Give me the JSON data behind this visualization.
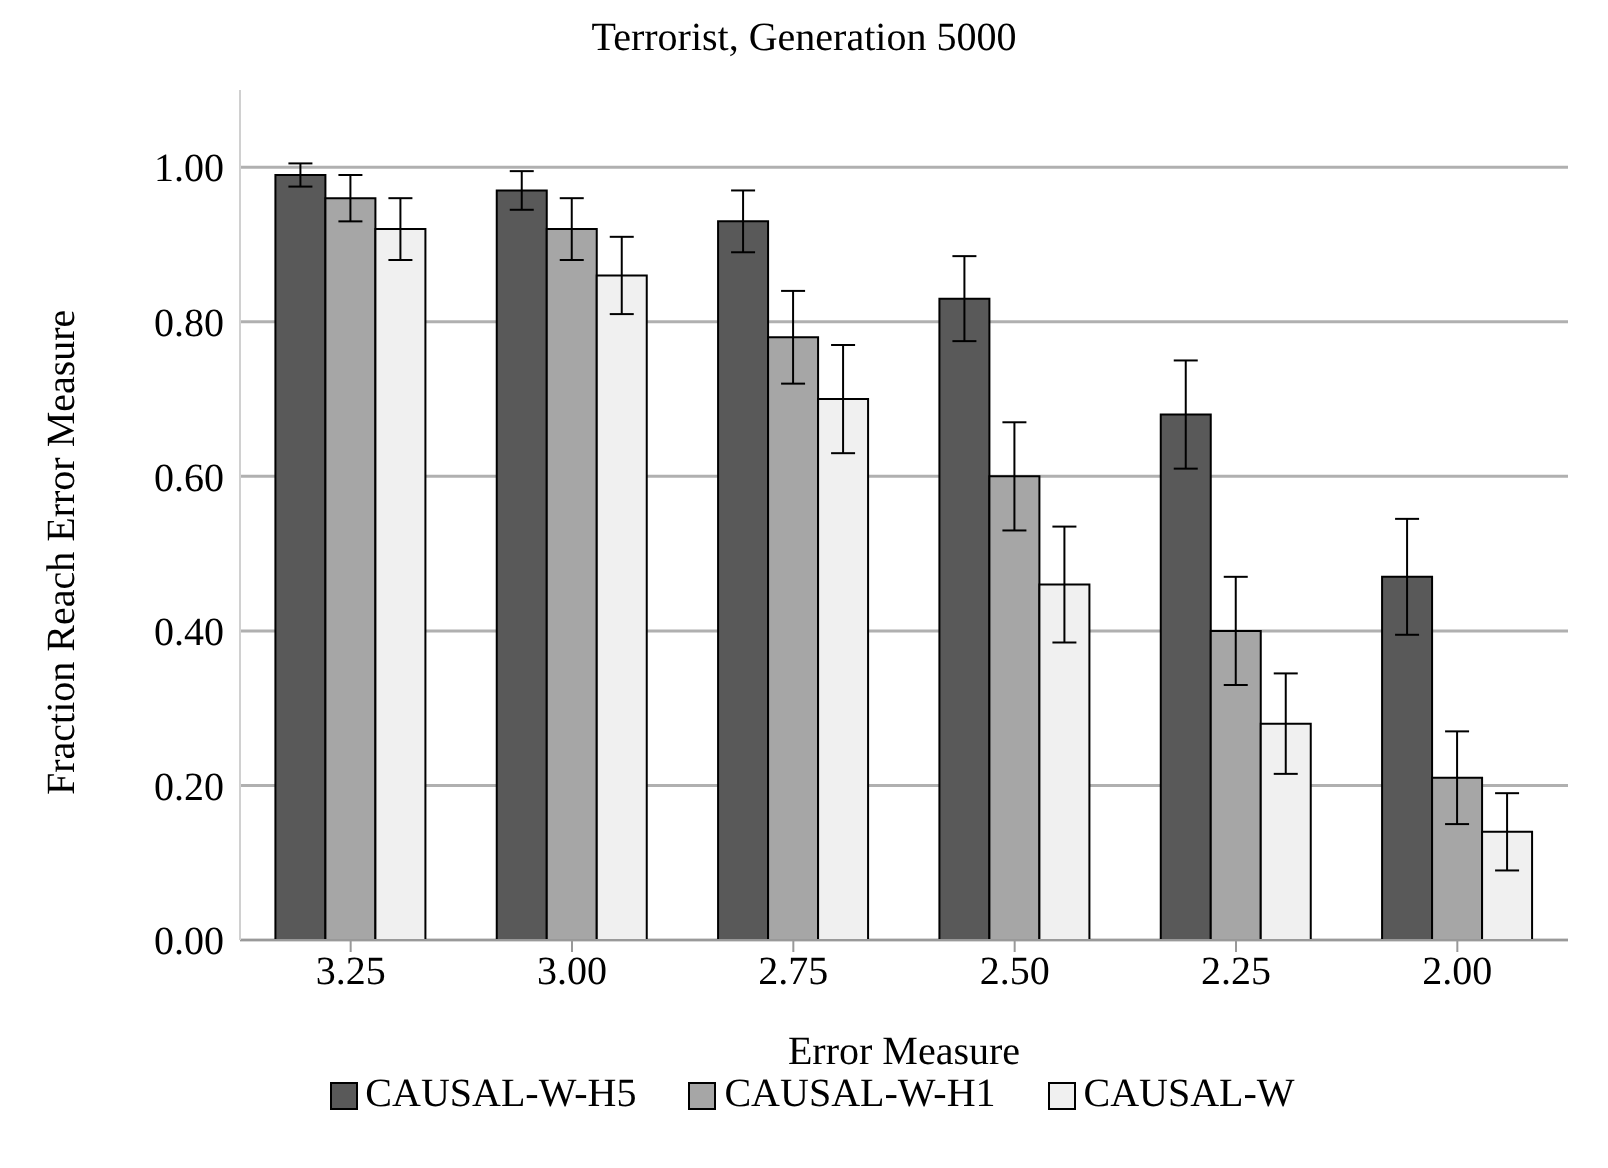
{
  "chart_data": {
    "type": "bar",
    "title": "Terrorist, Generation 5000",
    "xlabel": "Error Measure",
    "ylabel": "Fraction Reach Error Measure",
    "categories": [
      "3.25",
      "3.00",
      "2.75",
      "2.50",
      "2.25",
      "2.00"
    ],
    "series": [
      {
        "name": "CAUSAL-W-H5",
        "color": "#595959",
        "values": [
          0.99,
          0.97,
          0.93,
          0.83,
          0.68,
          0.47
        ],
        "errors": [
          0.015,
          0.025,
          0.04,
          0.055,
          0.07,
          0.075
        ]
      },
      {
        "name": "CAUSAL-W-H1",
        "color": "#a6a6a6",
        "values": [
          0.96,
          0.92,
          0.78,
          0.6,
          0.4,
          0.21
        ],
        "errors": [
          0.03,
          0.04,
          0.06,
          0.07,
          0.07,
          0.06
        ]
      },
      {
        "name": "CAUSAL-W",
        "color": "#f0f0f0",
        "values": [
          0.92,
          0.86,
          0.7,
          0.46,
          0.28,
          0.14
        ],
        "errors": [
          0.04,
          0.05,
          0.07,
          0.075,
          0.065,
          0.05
        ]
      }
    ],
    "ylim": [
      0,
      1.1
    ],
    "yticks": [
      {
        "value": 0,
        "label": "0.00"
      },
      {
        "value": 0.2,
        "label": "0.20"
      },
      {
        "value": 0.4,
        "label": "0.40"
      },
      {
        "value": 0.6,
        "label": "0.60"
      },
      {
        "value": 0.8,
        "label": "0.80"
      },
      {
        "value": 1,
        "label": "1.00"
      }
    ],
    "grid": "y",
    "legend": "bottom"
  }
}
